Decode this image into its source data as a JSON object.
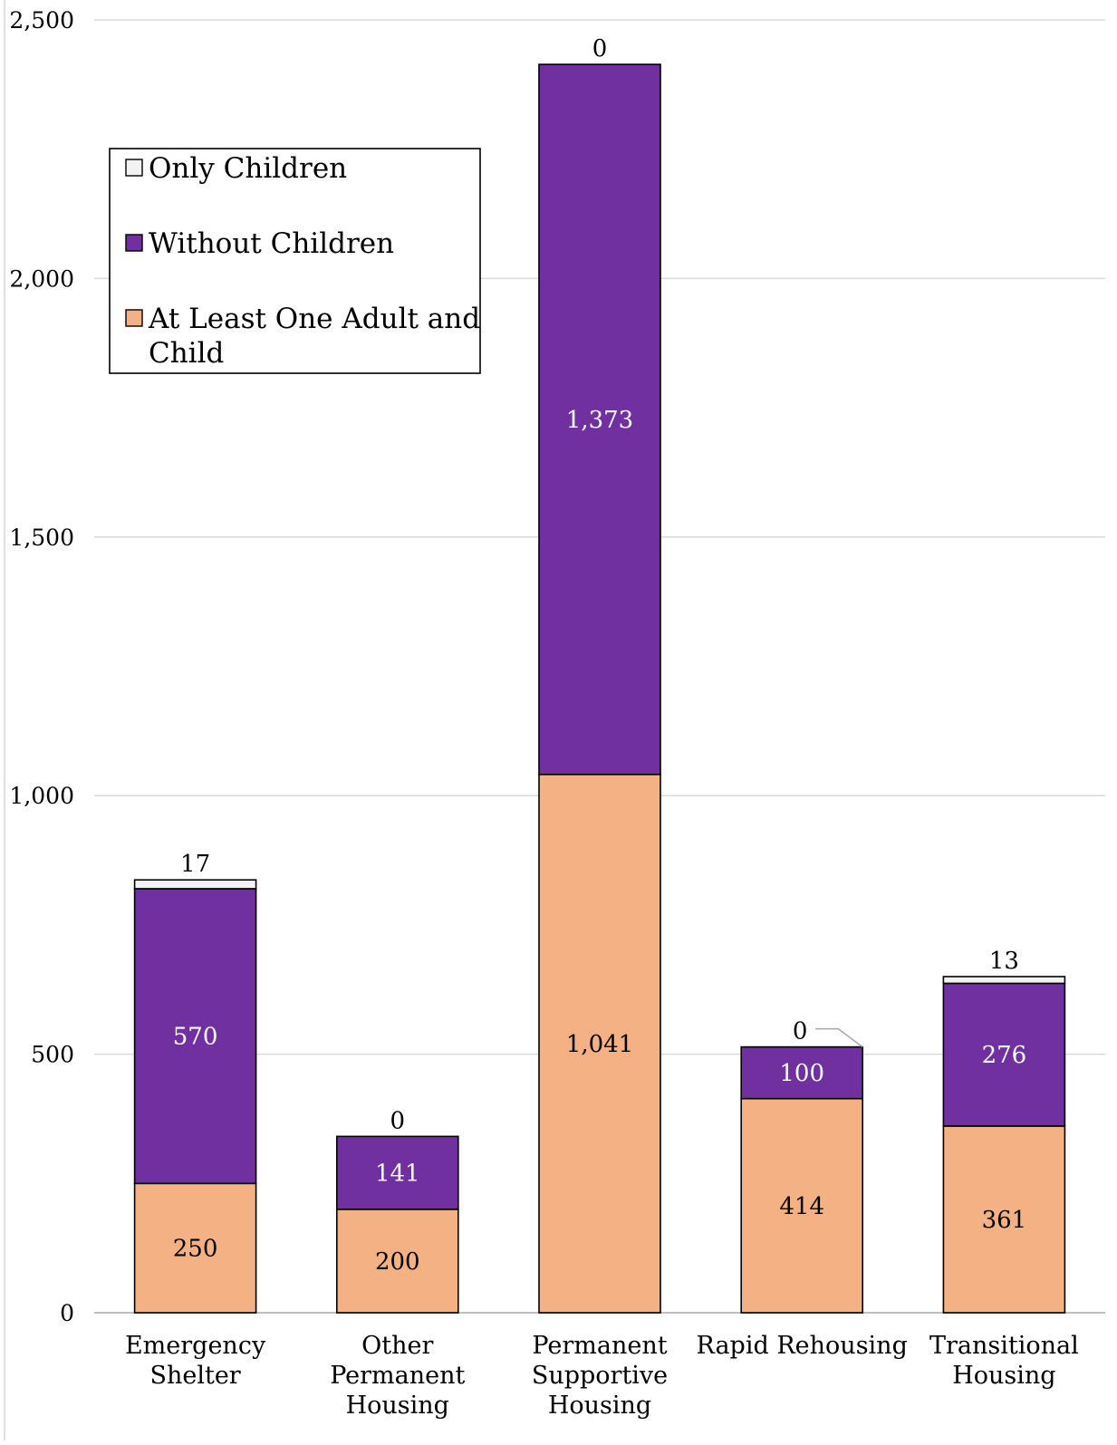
{
  "chart_data": {
    "type": "bar",
    "stacked": true,
    "title": "",
    "xlabel": "",
    "ylabel": "",
    "ylim": [
      0,
      2500
    ],
    "yticks": [
      0,
      500,
      1000,
      1500,
      2000,
      2500
    ],
    "ytick_labels": [
      "0",
      "500",
      "1,000",
      "1,500",
      "2,000",
      "2,500"
    ],
    "grid": true,
    "legend_position": "top-left",
    "categories": [
      [
        "Emergency",
        "Shelter"
      ],
      [
        "Other",
        "Permanent",
        "Housing"
      ],
      [
        "Permanent",
        "Supportive",
        "Housing"
      ],
      [
        "Rapid Rehousing"
      ],
      [
        "Transitional",
        "Housing"
      ]
    ],
    "series": [
      {
        "name": "At Least One Adult and Child",
        "legend_lines": [
          "At Least One Adult and",
          "Child"
        ],
        "color": "#F4B183",
        "label_color": "#000000",
        "values": [
          250,
          200,
          1041,
          414,
          361
        ],
        "labels": [
          "250",
          "200",
          "1,041",
          "414",
          "361"
        ]
      },
      {
        "name": "Without Children",
        "legend_lines": [
          "Without Children"
        ],
        "color": "#7030A0",
        "label_color": "#FFFFFF",
        "values": [
          570,
          141,
          1373,
          100,
          276
        ],
        "labels": [
          "570",
          "141",
          "1,373",
          "100",
          "276"
        ]
      },
      {
        "name": "Only Children",
        "legend_lines": [
          "Only Children"
        ],
        "color": "#F2F2F2",
        "label_color": "#000000",
        "values": [
          17,
          0,
          0,
          0,
          13
        ],
        "labels": [
          "17",
          "0",
          "0",
          "0",
          "13"
        ]
      }
    ],
    "legend_order": [
      "Only Children",
      "Without Children",
      "At Least One Adult and Child"
    ]
  }
}
